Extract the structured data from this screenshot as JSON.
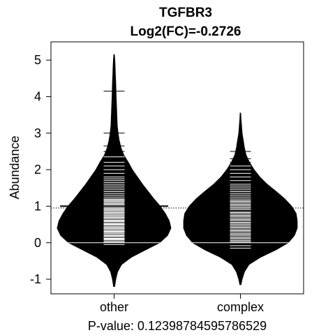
{
  "chart_data": {
    "type": "beanplot",
    "title": "TGFBR3",
    "subtitle": "Log2(FC)=-0.2726",
    "xlabel": "",
    "ylabel": "Abundance",
    "footer": "P-value: 0.12398784595786529",
    "ylim": [
      -1.4,
      5.5
    ],
    "yticks": [
      -1,
      0,
      1,
      2,
      3,
      4,
      5
    ],
    "ytick_labels": [
      "-1",
      "0",
      "1",
      "2",
      "3",
      "4",
      "5"
    ],
    "overall_line": 0.95,
    "fill_color": "#000000",
    "series": [
      {
        "name": "other",
        "mean": 1.0,
        "max_half_width_value": 0.45,
        "density": [
          [
            -1.2,
            0.01
          ],
          [
            -1.0,
            0.03
          ],
          [
            -0.8,
            0.06
          ],
          [
            -0.6,
            0.13
          ],
          [
            -0.4,
            0.3
          ],
          [
            -0.2,
            0.55
          ],
          [
            0.0,
            0.8
          ],
          [
            0.2,
            0.94
          ],
          [
            0.4,
            1.0
          ],
          [
            0.6,
            0.97
          ],
          [
            0.8,
            0.9
          ],
          [
            1.0,
            0.81
          ],
          [
            1.2,
            0.7
          ],
          [
            1.4,
            0.6
          ],
          [
            1.6,
            0.5
          ],
          [
            1.8,
            0.41
          ],
          [
            2.0,
            0.32
          ],
          [
            2.2,
            0.25
          ],
          [
            2.4,
            0.17
          ],
          [
            2.6,
            0.12
          ],
          [
            2.8,
            0.09
          ],
          [
            3.0,
            0.07
          ],
          [
            3.2,
            0.055
          ],
          [
            3.4,
            0.05
          ],
          [
            3.6,
            0.045
          ],
          [
            3.8,
            0.04
          ],
          [
            4.0,
            0.035
          ],
          [
            4.2,
            0.032
          ],
          [
            4.4,
            0.028
          ],
          [
            4.6,
            0.022
          ],
          [
            4.8,
            0.018
          ],
          [
            5.0,
            0.012
          ],
          [
            5.15,
            0.005
          ]
        ],
        "observations": [
          -0.05,
          0.0,
          0.02,
          0.05,
          0.08,
          0.1,
          0.12,
          0.15,
          0.18,
          0.2,
          0.22,
          0.25,
          0.28,
          0.3,
          0.32,
          0.35,
          0.38,
          0.4,
          0.42,
          0.45,
          0.48,
          0.5,
          0.52,
          0.55,
          0.58,
          0.6,
          0.62,
          0.65,
          0.68,
          0.7,
          0.72,
          0.75,
          0.78,
          0.8,
          0.83,
          0.85,
          0.88,
          0.9,
          0.93,
          0.95,
          0.98,
          1.0,
          1.03,
          1.05,
          1.08,
          1.1,
          1.13,
          1.15,
          1.18,
          1.2,
          1.25,
          1.3,
          1.35,
          1.4,
          1.45,
          1.5,
          1.55,
          1.6,
          1.65,
          1.7,
          1.75,
          1.8,
          1.9,
          2.0,
          2.1,
          2.2,
          2.35,
          2.5,
          2.65,
          3.0,
          4.15
        ]
      },
      {
        "name": "complex",
        "mean": 0.88,
        "max_half_width_value": 0.45,
        "density": [
          [
            -1.15,
            0.01
          ],
          [
            -1.0,
            0.03
          ],
          [
            -0.8,
            0.07
          ],
          [
            -0.6,
            0.15
          ],
          [
            -0.4,
            0.35
          ],
          [
            -0.2,
            0.62
          ],
          [
            0.0,
            0.84
          ],
          [
            0.2,
            0.95
          ],
          [
            0.4,
            1.0
          ],
          [
            0.6,
            1.0
          ],
          [
            0.8,
            0.98
          ],
          [
            1.0,
            0.9
          ],
          [
            1.2,
            0.78
          ],
          [
            1.4,
            0.63
          ],
          [
            1.6,
            0.47
          ],
          [
            1.8,
            0.34
          ],
          [
            2.0,
            0.24
          ],
          [
            2.2,
            0.16
          ],
          [
            2.4,
            0.1
          ],
          [
            2.6,
            0.07
          ],
          [
            2.8,
            0.05
          ],
          [
            3.0,
            0.03
          ],
          [
            3.2,
            0.02
          ],
          [
            3.4,
            0.01
          ],
          [
            3.55,
            0.005
          ]
        ],
        "observations": [
          -0.15,
          -0.08,
          0.0,
          0.03,
          0.06,
          0.1,
          0.13,
          0.16,
          0.2,
          0.23,
          0.26,
          0.3,
          0.33,
          0.36,
          0.4,
          0.43,
          0.46,
          0.5,
          0.53,
          0.56,
          0.6,
          0.63,
          0.66,
          0.7,
          0.73,
          0.76,
          0.8,
          0.83,
          0.86,
          0.9,
          0.93,
          0.96,
          1.0,
          1.03,
          1.06,
          1.1,
          1.13,
          1.16,
          1.2,
          1.25,
          1.3,
          1.35,
          1.4,
          1.45,
          1.5,
          1.55,
          1.6,
          1.7,
          1.8,
          1.9,
          2.0,
          2.1,
          2.2,
          2.3,
          2.5
        ]
      }
    ],
    "categories": [
      "other",
      "complex"
    ]
  }
}
